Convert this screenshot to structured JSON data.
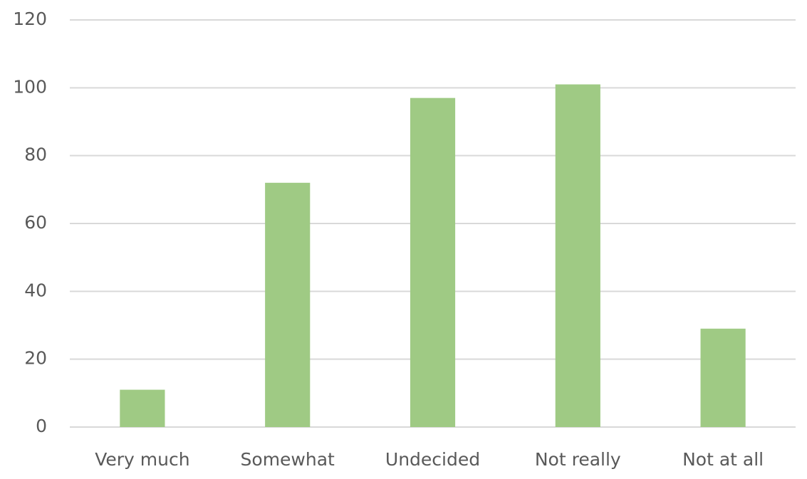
{
  "chart_data": {
    "type": "bar",
    "categories": [
      "Very much",
      "Somewhat",
      "Undecided",
      "Not really",
      "Not at all"
    ],
    "values": [
      11,
      72,
      97,
      101,
      29
    ],
    "color": "#9fca84",
    "ylim": [
      0,
      120
    ],
    "yticks": [
      0,
      20,
      40,
      60,
      80,
      100,
      120
    ],
    "grid": true
  }
}
